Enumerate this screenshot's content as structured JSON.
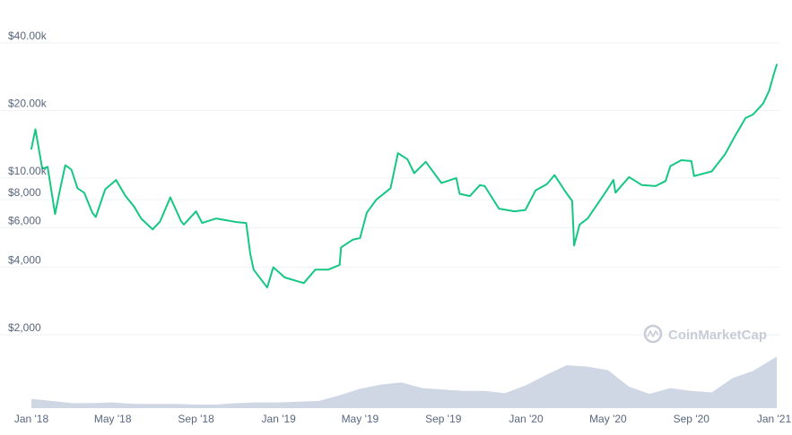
{
  "chart_data": {
    "type": "line",
    "title": "",
    "xlabel": "",
    "ylabel": "",
    "yscale": "log",
    "ylim": [
      1000,
      46000
    ],
    "grid": true,
    "legend": "none",
    "watermark": "CoinMarketCap",
    "y_ticks": [
      {
        "value": 40000,
        "label": "$40.00k"
      },
      {
        "value": 20000,
        "label": "$20.00k"
      },
      {
        "value": 10000,
        "label": "$10.00k"
      },
      {
        "value": 8000,
        "label": "$8,000"
      },
      {
        "value": 6000,
        "label": "$6,000"
      },
      {
        "value": 4000,
        "label": "$4,000"
      },
      {
        "value": 2000,
        "label": "$2,000"
      }
    ],
    "x_ticks": [
      {
        "date": "2018-01-01",
        "label": "Jan '18"
      },
      {
        "date": "2018-05-01",
        "label": "May '18"
      },
      {
        "date": "2018-09-01",
        "label": "Sep '18"
      },
      {
        "date": "2019-01-01",
        "label": "Jan '19"
      },
      {
        "date": "2019-05-01",
        "label": "May '19"
      },
      {
        "date": "2019-09-01",
        "label": "Sep '19"
      },
      {
        "date": "2020-01-01",
        "label": "Jan '20"
      },
      {
        "date": "2020-05-01",
        "label": "May '20"
      },
      {
        "date": "2020-09-01",
        "label": "Sep '20"
      },
      {
        "date": "2021-01-01",
        "label": "Jan '21"
      }
    ],
    "series": [
      {
        "color": "#16c784",
        "points": [
          [
            "2018-01-01",
            13500
          ],
          [
            "2018-01-07",
            16500
          ],
          [
            "2018-01-17",
            11000
          ],
          [
            "2018-01-25",
            11200
          ],
          [
            "2018-02-05",
            6900
          ],
          [
            "2018-02-12",
            8800
          ],
          [
            "2018-02-20",
            11400
          ],
          [
            "2018-03-01",
            10900
          ],
          [
            "2018-03-10",
            9000
          ],
          [
            "2018-03-20",
            8600
          ],
          [
            "2018-04-01",
            7000
          ],
          [
            "2018-04-06",
            6700
          ],
          [
            "2018-04-20",
            8900
          ],
          [
            "2018-05-06",
            9800
          ],
          [
            "2018-05-20",
            8300
          ],
          [
            "2018-06-01",
            7500
          ],
          [
            "2018-06-12",
            6600
          ],
          [
            "2018-06-29",
            5900
          ],
          [
            "2018-07-10",
            6400
          ],
          [
            "2018-07-25",
            8200
          ],
          [
            "2018-08-10",
            6400
          ],
          [
            "2018-08-14",
            6200
          ],
          [
            "2018-09-01",
            7100
          ],
          [
            "2018-09-10",
            6300
          ],
          [
            "2018-10-01",
            6600
          ],
          [
            "2018-11-01",
            6350
          ],
          [
            "2018-11-14",
            6300
          ],
          [
            "2018-11-20",
            4600
          ],
          [
            "2018-11-25",
            3900
          ],
          [
            "2018-12-15",
            3250
          ],
          [
            "2018-12-24",
            4000
          ],
          [
            "2019-01-10",
            3600
          ],
          [
            "2019-02-07",
            3400
          ],
          [
            "2019-02-24",
            3900
          ],
          [
            "2019-03-15",
            3900
          ],
          [
            "2019-04-01",
            4100
          ],
          [
            "2019-04-03",
            4900
          ],
          [
            "2019-04-20",
            5300
          ],
          [
            "2019-05-01",
            5400
          ],
          [
            "2019-05-11",
            7000
          ],
          [
            "2019-05-25",
            8000
          ],
          [
            "2019-06-15",
            9000
          ],
          [
            "2019-06-26",
            12900
          ],
          [
            "2019-07-10",
            12100
          ],
          [
            "2019-07-20",
            10500
          ],
          [
            "2019-08-06",
            11800
          ],
          [
            "2019-08-29",
            9500
          ],
          [
            "2019-09-20",
            10000
          ],
          [
            "2019-09-25",
            8500
          ],
          [
            "2019-10-10",
            8300
          ],
          [
            "2019-10-25",
            9300
          ],
          [
            "2019-11-01",
            9200
          ],
          [
            "2019-11-22",
            7300
          ],
          [
            "2019-12-15",
            7100
          ],
          [
            "2019-12-31",
            7200
          ],
          [
            "2020-01-15",
            8800
          ],
          [
            "2020-02-01",
            9400
          ],
          [
            "2020-02-12",
            10300
          ],
          [
            "2020-02-28",
            8700
          ],
          [
            "2020-03-09",
            7900
          ],
          [
            "2020-03-12",
            5000
          ],
          [
            "2020-03-20",
            6200
          ],
          [
            "2020-04-01",
            6600
          ],
          [
            "2020-04-29",
            8800
          ],
          [
            "2020-05-09",
            9800
          ],
          [
            "2020-05-12",
            8600
          ],
          [
            "2020-06-01",
            10100
          ],
          [
            "2020-06-20",
            9300
          ],
          [
            "2020-07-10",
            9200
          ],
          [
            "2020-07-25",
            9700
          ],
          [
            "2020-08-01",
            11300
          ],
          [
            "2020-08-17",
            12000
          ],
          [
            "2020-09-01",
            11900
          ],
          [
            "2020-09-05",
            10200
          ],
          [
            "2020-10-01",
            10700
          ],
          [
            "2020-10-21",
            12800
          ],
          [
            "2020-11-05",
            15500
          ],
          [
            "2020-11-20",
            18500
          ],
          [
            "2020-12-01",
            19200
          ],
          [
            "2020-12-16",
            21500
          ],
          [
            "2020-12-25",
            24600
          ],
          [
            "2021-01-01",
            29300
          ],
          [
            "2021-01-05",
            32000
          ]
        ]
      }
    ],
    "volume": {
      "color": "#cfd6e4",
      "scale_max": 1.0,
      "points": [
        [
          "2018-01-01",
          0.13
        ],
        [
          "2018-02-01",
          0.1
        ],
        [
          "2018-03-01",
          0.07
        ],
        [
          "2018-04-01",
          0.07
        ],
        [
          "2018-05-01",
          0.08
        ],
        [
          "2018-06-01",
          0.06
        ],
        [
          "2018-07-01",
          0.06
        ],
        [
          "2018-08-01",
          0.06
        ],
        [
          "2018-09-01",
          0.05
        ],
        [
          "2018-10-01",
          0.05
        ],
        [
          "2018-11-01",
          0.07
        ],
        [
          "2018-12-01",
          0.08
        ],
        [
          "2019-01-01",
          0.08
        ],
        [
          "2019-02-01",
          0.09
        ],
        [
          "2019-03-01",
          0.1
        ],
        [
          "2019-04-01",
          0.18
        ],
        [
          "2019-05-01",
          0.27
        ],
        [
          "2019-06-01",
          0.33
        ],
        [
          "2019-07-01",
          0.36
        ],
        [
          "2019-08-01",
          0.28
        ],
        [
          "2019-09-01",
          0.26
        ],
        [
          "2019-10-01",
          0.24
        ],
        [
          "2019-11-01",
          0.24
        ],
        [
          "2019-12-01",
          0.21
        ],
        [
          "2020-01-01",
          0.32
        ],
        [
          "2020-02-01",
          0.47
        ],
        [
          "2020-03-01",
          0.6
        ],
        [
          "2020-04-01",
          0.58
        ],
        [
          "2020-05-01",
          0.53
        ],
        [
          "2020-06-01",
          0.3
        ],
        [
          "2020-07-01",
          0.2
        ],
        [
          "2020-08-01",
          0.28
        ],
        [
          "2020-09-01",
          0.24
        ],
        [
          "2020-10-01",
          0.22
        ],
        [
          "2020-11-01",
          0.42
        ],
        [
          "2020-12-01",
          0.52
        ],
        [
          "2021-01-05",
          0.72
        ]
      ]
    }
  }
}
